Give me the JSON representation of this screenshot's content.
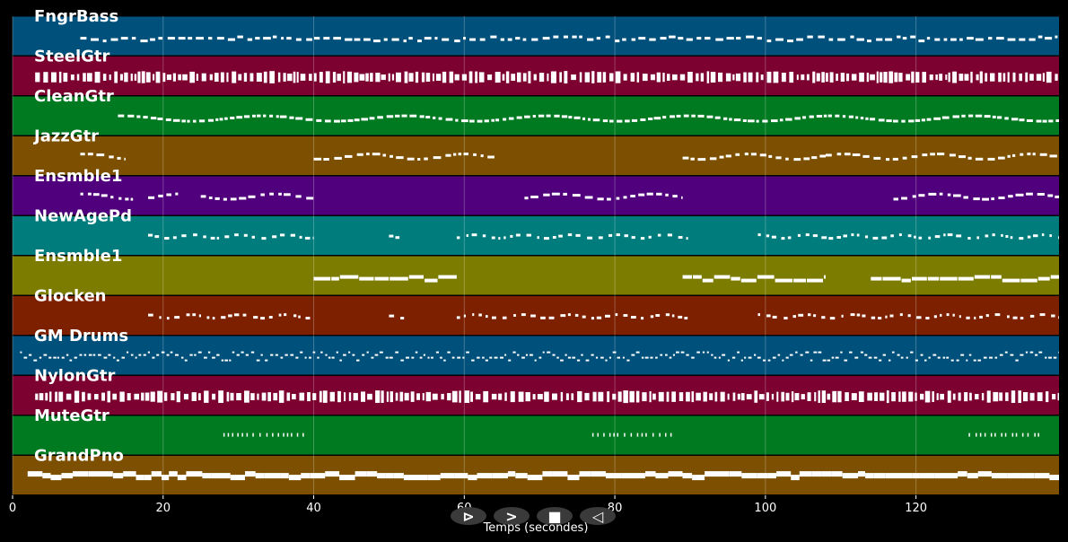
{
  "chart_data": {
    "type": "piano-roll",
    "xlabel": "Temps (secondes)",
    "xlim": [
      0,
      139
    ],
    "x_ticks": [
      0,
      20,
      40,
      60,
      80,
      100,
      120
    ],
    "grid": true,
    "tracks": [
      {
        "name": "FngrBass",
        "color": "#00507c",
        "pattern": "dense-low",
        "start": 9,
        "end": 139
      },
      {
        "name": "SteelGtr",
        "color": "#7c0030",
        "pattern": "dense-block",
        "start": 3,
        "end": 139
      },
      {
        "name": "CleanGtr",
        "color": "#007a20",
        "pattern": "wave",
        "start": 14,
        "end": 139
      },
      {
        "name": "JazzGtr",
        "color": "#7c5000",
        "pattern": "sections",
        "segments": [
          [
            9,
            15
          ],
          [
            40,
            64
          ],
          [
            89,
            108
          ],
          [
            108,
            139
          ]
        ]
      },
      {
        "name": "Ensmble1",
        "color": "#50007c",
        "pattern": "sections",
        "segments": [
          [
            9,
            16
          ],
          [
            18,
            22
          ],
          [
            25,
            40
          ],
          [
            68,
            89
          ],
          [
            117,
            139
          ]
        ]
      },
      {
        "name": "NewAgePd",
        "color": "#007c7c",
        "pattern": "sparse",
        "segments": [
          [
            18,
            40
          ],
          [
            50,
            52
          ],
          [
            59,
            90
          ],
          [
            99,
            139
          ]
        ]
      },
      {
        "name": "Ensmble1",
        "color": "#7c7c00",
        "pattern": "long-notes",
        "segments": [
          [
            40,
            59
          ],
          [
            89,
            108
          ],
          [
            114,
            139
          ]
        ]
      },
      {
        "name": "Glocken",
        "color": "#7c2000",
        "pattern": "sparse",
        "segments": [
          [
            18,
            40
          ],
          [
            50,
            52
          ],
          [
            59,
            90
          ],
          [
            99,
            139
          ]
        ]
      },
      {
        "name": "GM Drums",
        "color": "#00507c",
        "pattern": "drums",
        "start": 1,
        "end": 139
      },
      {
        "name": "NylonGtr",
        "color": "#7c0030",
        "pattern": "dense-block",
        "start": 3,
        "end": 139
      },
      {
        "name": "MuteGtr",
        "color": "#007a20",
        "pattern": "ticks",
        "segments": [
          [
            28,
            39
          ],
          [
            77,
            88
          ],
          [
            127,
            137
          ]
        ]
      },
      {
        "name": "GrandPno",
        "color": "#7c5000",
        "pattern": "thick-line",
        "start": 2,
        "end": 139
      }
    ]
  },
  "controls": [
    {
      "name": "play-button",
      "glyph": "⊳"
    },
    {
      "name": "forward-button",
      "glyph": ">"
    },
    {
      "name": "stop-button",
      "glyph": "■"
    },
    {
      "name": "back-button",
      "glyph": "◁"
    }
  ]
}
